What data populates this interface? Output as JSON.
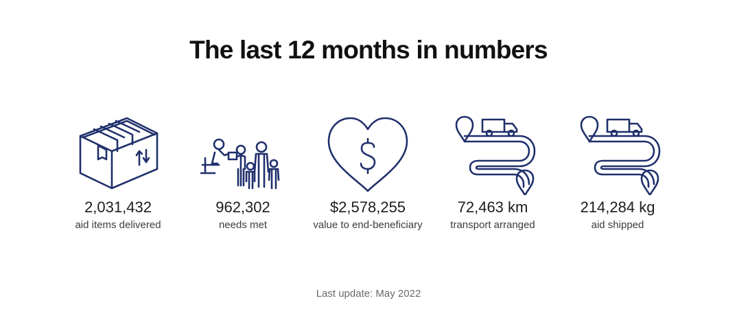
{
  "title": "The last 12 months in numbers",
  "accent_color": "#1f2f6b",
  "stats": [
    {
      "icon": "box-icon",
      "value": "2,031,432",
      "label": "aid items delivered"
    },
    {
      "icon": "people-icon",
      "value": "962,302",
      "label": "needs met"
    },
    {
      "icon": "heart-dollar-icon",
      "value": "$2,578,255",
      "label": "value to end-beneficiary"
    },
    {
      "icon": "truck-route-icon",
      "value": "72,463 km",
      "label": "transport arranged"
    },
    {
      "icon": "truck-route-icon",
      "value": "214,284 kg",
      "label": "aid shipped"
    }
  ],
  "footer": "Last update: May 2022"
}
